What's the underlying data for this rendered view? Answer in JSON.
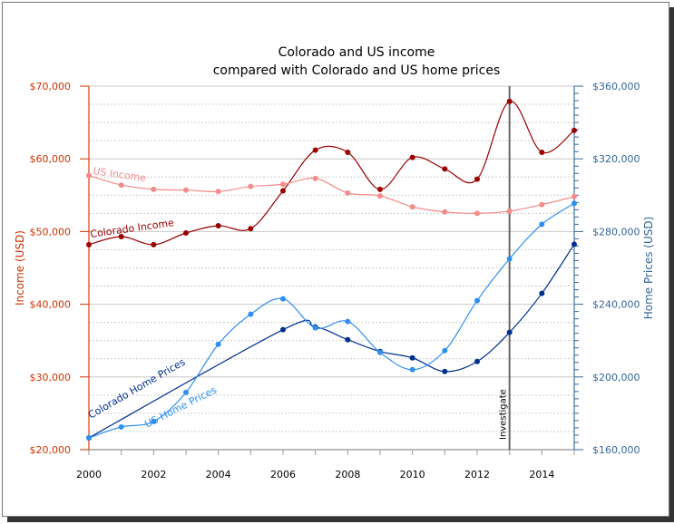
{
  "chart_data": {
    "type": "line",
    "title": [
      "Colorado and US income",
      "compared with Colorado and US home prices"
    ],
    "x": [
      2000,
      2001,
      2002,
      2003,
      2004,
      2005,
      2006,
      2007,
      2008,
      2009,
      2010,
      2011,
      2012,
      2013,
      2014,
      2015
    ],
    "x_ticks": [
      "2000",
      "2002",
      "2004",
      "2006",
      "2008",
      "2010",
      "2012",
      "2014"
    ],
    "y_left": {
      "label": "Income (USD)",
      "range": [
        20000,
        70000
      ],
      "ticks": [
        "$20,000",
        "$30,000",
        "$40,000",
        "$50,000",
        "$60,000",
        "$70,000"
      ],
      "color": "#cc3300"
    },
    "y_right": {
      "label": "Home Prices (USD)",
      "range": [
        160000,
        360000
      ],
      "ticks": [
        "$160,000",
        "$200,000",
        "$240,000",
        "$280,000",
        "$320,000",
        "$360,000"
      ],
      "color": "#336699"
    },
    "grid": true,
    "series": [
      {
        "name": "Colorado Income",
        "axis": "left",
        "color": "#990000",
        "values": [
          48200,
          49300,
          48200,
          49800,
          50800,
          50400,
          55600,
          61200,
          60900,
          55800,
          60200,
          58600,
          57200,
          67900,
          60900,
          63900
        ]
      },
      {
        "name": "US Income",
        "axis": "left",
        "color": "#f28b8b",
        "values": [
          57700,
          56400,
          55800,
          55700,
          55500,
          56200,
          56500,
          57300,
          55300,
          54900,
          53400,
          52700,
          52500,
          52800,
          53700,
          54800
        ]
      },
      {
        "name": "Colorado Home Prices",
        "axis": "right",
        "color": "#002f8f",
        "values": [
          166500,
          null,
          null,
          null,
          null,
          null,
          226000,
          227500,
          220500,
          214000,
          210500,
          203000,
          208500,
          224500,
          246000,
          273000
        ]
      },
      {
        "name": "US Home Prices",
        "axis": "right",
        "color": "#2f8fef",
        "values": [
          166500,
          172500,
          175500,
          191500,
          218000,
          234500,
          243000,
          227000,
          230500,
          213500,
          204000,
          214500,
          242000,
          265000,
          284000,
          295500
        ]
      }
    ],
    "annotation": {
      "x": 2013,
      "label": "Investigate"
    }
  }
}
